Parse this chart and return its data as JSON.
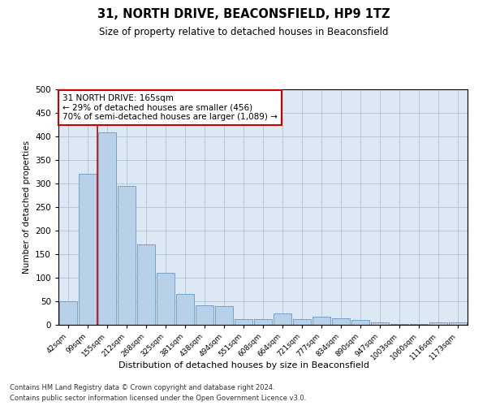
{
  "title": "31, NORTH DRIVE, BEACONSFIELD, HP9 1TZ",
  "subtitle": "Size of property relative to detached houses in Beaconsfield",
  "xlabel": "Distribution of detached houses by size in Beaconsfield",
  "ylabel": "Number of detached properties",
  "footnote1": "Contains HM Land Registry data © Crown copyright and database right 2024.",
  "footnote2": "Contains public sector information licensed under the Open Government Licence v3.0.",
  "categories": [
    "42sqm",
    "99sqm",
    "155sqm",
    "212sqm",
    "268sqm",
    "325sqm",
    "381sqm",
    "438sqm",
    "494sqm",
    "551sqm",
    "608sqm",
    "664sqm",
    "721sqm",
    "777sqm",
    "834sqm",
    "890sqm",
    "947sqm",
    "1003sqm",
    "1060sqm",
    "1116sqm",
    "1173sqm"
  ],
  "values": [
    50,
    320,
    408,
    295,
    170,
    110,
    65,
    42,
    40,
    12,
    12,
    25,
    12,
    18,
    13,
    10,
    5,
    2,
    2,
    5,
    5
  ],
  "bar_color": "#b8d0e8",
  "bar_edge_color": "#6699cc",
  "vline_color": "#cc0000",
  "annotation_text": "31 NORTH DRIVE: 165sqm\n← 29% of detached houses are smaller (456)\n70% of semi-detached houses are larger (1,089) →",
  "annotation_box_color": "#ffffff",
  "annotation_box_edge": "#cc0000",
  "ylim": [
    0,
    500
  ],
  "yticks": [
    0,
    50,
    100,
    150,
    200,
    250,
    300,
    350,
    400,
    450,
    500
  ],
  "ax_bg_color": "#dce9f5",
  "background_color": "#ffffff",
  "grid_color": "#b0c4d8"
}
